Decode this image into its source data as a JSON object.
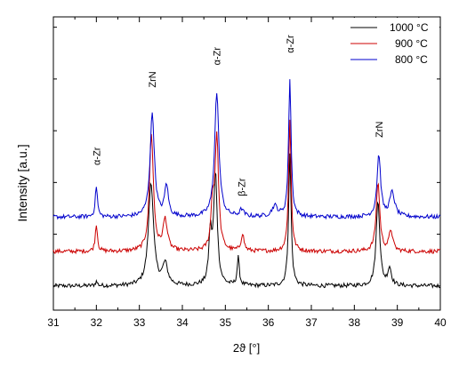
{
  "chart_data": {
    "type": "line",
    "title": "",
    "xlabel": "2ϑ [°]",
    "ylabel": "Intensity [a.u.]",
    "xlim": [
      31,
      40
    ],
    "x_ticks": [
      "31",
      "32",
      "33",
      "34",
      "35",
      "36",
      "37",
      "38",
      "39",
      "40"
    ],
    "y_ticks_labeled": false,
    "grid": false,
    "legend_position": "top-right",
    "series": [
      {
        "name": "1000 °C",
        "color": "#000000",
        "baseline": 0.0,
        "noise": 0.6,
        "peaks": [
          [
            32.0,
            1.2,
            0.03
          ],
          [
            33.27,
            30.0,
            0.07
          ],
          [
            33.6,
            6.0,
            0.07
          ],
          [
            34.65,
            14.0,
            0.04
          ],
          [
            34.77,
            32.0,
            0.05
          ],
          [
            35.3,
            8.0,
            0.03
          ],
          [
            36.5,
            38.0,
            0.035
          ],
          [
            38.55,
            25.0,
            0.05
          ],
          [
            38.82,
            5.0,
            0.05
          ]
        ]
      },
      {
        "name": "900 °C",
        "color": "#cc0000",
        "baseline": 10.0,
        "noise": 0.6,
        "peaks": [
          [
            32.0,
            8.0,
            0.03
          ],
          [
            33.28,
            34.0,
            0.055
          ],
          [
            33.6,
            9.0,
            0.06
          ],
          [
            34.7,
            12.0,
            0.04
          ],
          [
            34.8,
            33.0,
            0.05
          ],
          [
            35.4,
            5.0,
            0.04
          ],
          [
            36.5,
            38.0,
            0.035
          ],
          [
            38.55,
            20.0,
            0.05
          ],
          [
            38.85,
            6.0,
            0.05
          ]
        ]
      },
      {
        "name": "800 °C",
        "color": "#0000cc",
        "baseline": 20.0,
        "noise": 0.6,
        "peaks": [
          [
            32.0,
            9.0,
            0.03
          ],
          [
            33.3,
            30.0,
            0.06
          ],
          [
            33.63,
            9.0,
            0.05
          ],
          [
            34.8,
            36.0,
            0.06
          ],
          [
            35.38,
            2.0,
            0.05
          ],
          [
            36.15,
            3.0,
            0.08
          ],
          [
            36.5,
            40.0,
            0.035
          ],
          [
            38.57,
            18.0,
            0.05
          ],
          [
            38.88,
            7.0,
            0.07
          ]
        ]
      }
    ],
    "ylim": [
      -7,
      78
    ],
    "annotations": [
      {
        "text": "α-Zr",
        "x": 32.0,
        "y": 35.0
      },
      {
        "text": "ZrN",
        "x": 33.3,
        "y": 57.5
      },
      {
        "text": "α-Zr",
        "x": 34.8,
        "y": 64.0
      },
      {
        "text": "β-Zr",
        "x": 35.38,
        "y": 26.0
      },
      {
        "text": "α-Zr",
        "x": 36.5,
        "y": 67.5
      },
      {
        "text": "ZrN",
        "x": 38.57,
        "y": 43.0
      }
    ]
  }
}
